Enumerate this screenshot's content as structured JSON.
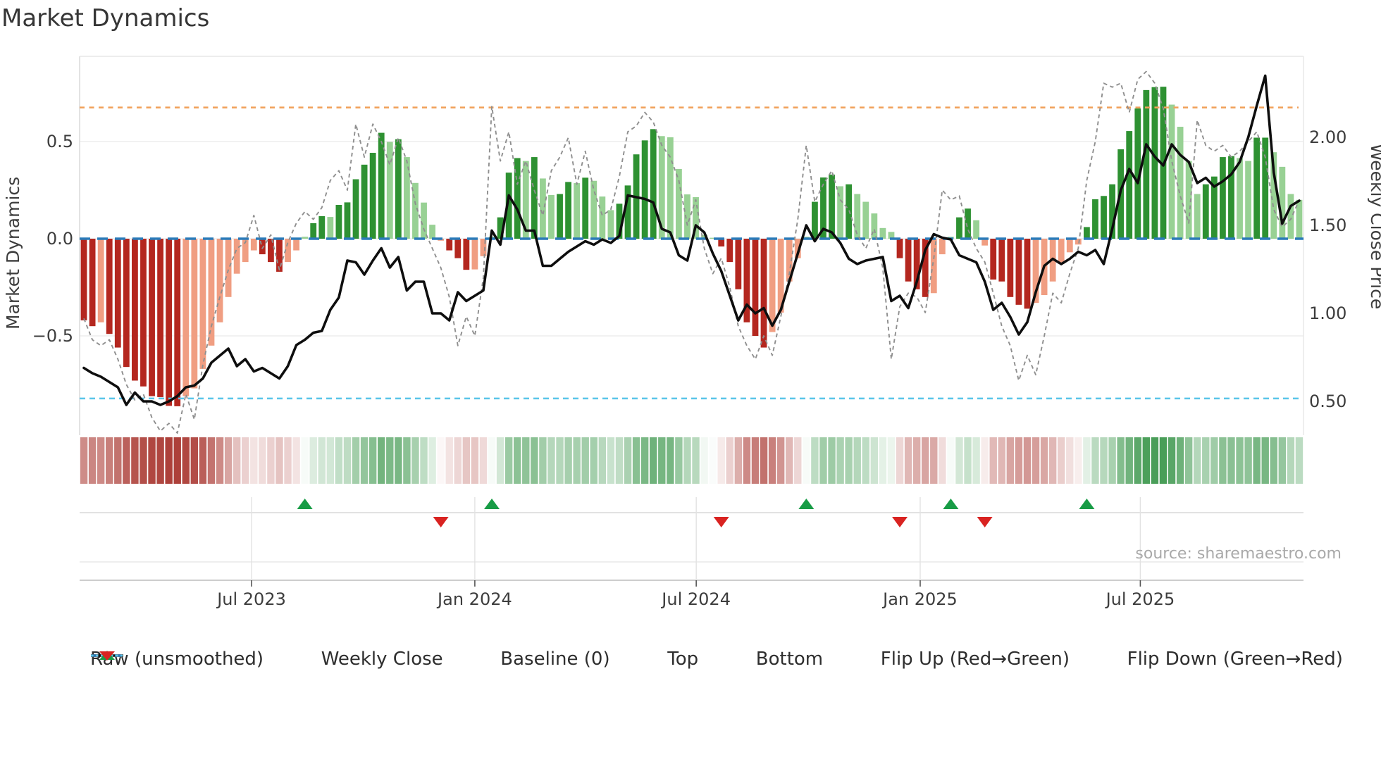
{
  "title": "Market Dynamics",
  "axes": {
    "left_title": "Market Dynamics",
    "right_title": "Weekly Close Price",
    "left_ticks": [
      {
        "value": 0.5,
        "label": "0.5"
      },
      {
        "value": 0.0,
        "label": "0.0"
      },
      {
        "value": -0.5,
        "label": "−0.5"
      }
    ],
    "right_ticks": [
      {
        "value": 2.0,
        "label": "2.00"
      },
      {
        "value": 1.5,
        "label": "1.50"
      },
      {
        "value": 1.0,
        "label": "1.00"
      },
      {
        "value": 0.5,
        "label": "0.50"
      }
    ],
    "x_ticks": [
      {
        "pos": 19.73,
        "label": "Jul 2023"
      },
      {
        "pos": 46.0,
        "label": "Jan 2024"
      },
      {
        "pos": 72.05,
        "label": "Jul 2024"
      },
      {
        "pos": 98.4,
        "label": "Jan 2025"
      },
      {
        "pos": 124.3,
        "label": "Jul 2025"
      }
    ]
  },
  "source_text": "source: sharemaestro.com",
  "legend": {
    "items": [
      {
        "label": "Raw (unsmoothed)",
        "swatch": "dash-gray"
      },
      {
        "label": "Weekly Close",
        "swatch": "solid-black"
      },
      {
        "label": "Baseline (0)",
        "swatch": "dash-blue"
      },
      {
        "label": "Top",
        "swatch": "dot-orange"
      },
      {
        "label": "Bottom",
        "swatch": "dot-cyan"
      },
      {
        "label": "Flip Up (Red→Green)",
        "swatch": "tri-up"
      },
      {
        "label": "Flip Down (Green→Red)",
        "swatch": "tri-down"
      }
    ]
  },
  "colors": {
    "bar_dark_green": "#2e9132",
    "bar_light_green": "#98d194",
    "bar_dark_red": "#b4271f",
    "bar_light_red": "#f09e82",
    "raw_line": "#8f8f8f",
    "price_line": "#0e0e0e",
    "baseline": "#2b7bb9",
    "top_line": "#f1a25c",
    "bottom_line": "#5ac5e9",
    "flip_up": "#189c46",
    "flip_down": "#d92321",
    "heat_green": "#3e984e",
    "heat_red": "#ad403a",
    "gridline": "#ededed",
    "spine": "#dcdcdc",
    "tick_text": "#3d3d3d",
    "source_text_color": "#a9a9a9"
  },
  "chart_data": {
    "type": "combo",
    "x_start_week": "2023-02-13",
    "x_freq": "weekly",
    "n_weeks": 144,
    "baseline": 0,
    "top_threshold": 0.675,
    "bottom_threshold": -0.822,
    "ylim_left": [
      -1.01,
      0.94
    ],
    "ylim_right": [
      0.31,
      2.46
    ],
    "xlabel_ticks": [
      "Jul 2023",
      "Jan 2024",
      "Jul 2024",
      "Jan 2025",
      "Jul 2025"
    ],
    "series": {
      "oscillator": [
        -0.42,
        -0.45,
        -0.43,
        -0.49,
        -0.56,
        -0.66,
        -0.73,
        -0.76,
        -0.81,
        -0.815,
        -0.86,
        -0.862,
        -0.81,
        -0.77,
        -0.67,
        -0.55,
        -0.43,
        -0.3,
        -0.18,
        -0.12,
        -0.06,
        -0.08,
        -0.12,
        -0.17,
        -0.12,
        -0.06,
        0.01,
        0.08,
        0.116,
        0.112,
        0.174,
        0.187,
        0.306,
        0.381,
        0.442,
        0.545,
        0.498,
        0.512,
        0.42,
        0.287,
        0.186,
        0.072,
        -0.01,
        -0.06,
        -0.1,
        -0.16,
        -0.158,
        -0.09,
        0.01,
        0.11,
        0.34,
        0.415,
        0.4,
        0.42,
        0.31,
        0.225,
        0.23,
        0.292,
        0.286,
        0.314,
        0.298,
        0.217,
        0.147,
        0.18,
        0.274,
        0.434,
        0.506,
        0.564,
        0.528,
        0.522,
        0.359,
        0.228,
        0.214,
        0.02,
        0.005,
        -0.04,
        -0.12,
        -0.26,
        -0.43,
        -0.5,
        -0.56,
        -0.48,
        -0.38,
        -0.22,
        -0.1,
        0.01,
        0.19,
        0.315,
        0.33,
        0.27,
        0.28,
        0.23,
        0.19,
        0.13,
        0.055,
        0.035,
        -0.1,
        -0.22,
        -0.26,
        -0.3,
        -0.28,
        -0.08,
        0.01,
        0.11,
        0.155,
        0.095,
        -0.035,
        -0.21,
        -0.22,
        -0.3,
        -0.34,
        -0.36,
        -0.33,
        -0.29,
        -0.22,
        -0.13,
        -0.07,
        -0.03,
        0.06,
        0.203,
        0.22,
        0.28,
        0.46,
        0.554,
        0.67,
        0.765,
        0.78,
        0.782,
        0.69,
        0.576,
        0.4,
        0.23,
        0.28,
        0.32,
        0.42,
        0.425,
        0.415,
        0.4,
        0.52,
        0.52,
        0.445,
        0.37,
        0.23,
        0.2
      ],
      "raw": [
        -0.41,
        -0.52,
        -0.55,
        -0.52,
        -0.62,
        -0.75,
        -0.83,
        -0.8,
        -0.92,
        -0.99,
        -0.95,
        -1.0,
        -0.8,
        -0.93,
        -0.65,
        -0.45,
        -0.3,
        -0.16,
        -0.05,
        -0.02,
        0.12,
        -0.05,
        0.02,
        -0.16,
        -0.02,
        0.08,
        0.14,
        0.1,
        0.16,
        0.3,
        0.35,
        0.25,
        0.59,
        0.42,
        0.59,
        0.5,
        0.38,
        0.52,
        0.4,
        0.18,
        0.05,
        -0.05,
        -0.15,
        -0.3,
        -0.55,
        -0.4,
        -0.5,
        -0.2,
        0.68,
        0.4,
        0.55,
        0.28,
        0.4,
        0.25,
        0.12,
        0.35,
        0.42,
        0.52,
        0.28,
        0.45,
        0.25,
        0.12,
        0.15,
        0.32,
        0.55,
        0.58,
        0.65,
        0.6,
        0.48,
        0.42,
        0.3,
        0.07,
        0.2,
        -0.05,
        -0.18,
        -0.1,
        -0.25,
        -0.45,
        -0.55,
        -0.62,
        -0.5,
        -0.6,
        -0.4,
        -0.18,
        0.1,
        0.48,
        0.19,
        0.28,
        0.35,
        0.2,
        0.15,
        0.02,
        -0.05,
        0.05,
        -0.15,
        -0.62,
        -0.35,
        -0.28,
        -0.3,
        -0.38,
        -0.1,
        0.25,
        0.2,
        0.22,
        0.05,
        -0.05,
        -0.12,
        -0.28,
        -0.45,
        -0.55,
        -0.73,
        -0.6,
        -0.7,
        -0.5,
        -0.28,
        -0.33,
        -0.18,
        -0.05,
        0.3,
        0.5,
        0.8,
        0.78,
        0.8,
        0.65,
        0.82,
        0.86,
        0.8,
        0.67,
        0.4,
        0.22,
        0.08,
        0.61,
        0.48,
        0.45,
        0.48,
        0.42,
        0.45,
        0.5,
        0.55,
        0.42,
        0.15,
        0.06,
        0.1,
        0.2
      ],
      "weekly_close": [
        0.69,
        0.66,
        0.64,
        0.61,
        0.58,
        0.48,
        0.55,
        0.5,
        0.5,
        0.48,
        0.5,
        0.53,
        0.58,
        0.59,
        0.63,
        0.72,
        0.76,
        0.8,
        0.7,
        0.74,
        0.67,
        0.69,
        0.66,
        0.63,
        0.7,
        0.82,
        0.85,
        0.89,
        0.9,
        1.02,
        1.09,
        1.3,
        1.29,
        1.22,
        1.3,
        1.37,
        1.26,
        1.32,
        1.13,
        1.18,
        1.18,
        1.0,
        1.0,
        0.96,
        1.12,
        1.07,
        1.1,
        1.13,
        1.47,
        1.39,
        1.67,
        1.59,
        1.47,
        1.47,
        1.27,
        1.27,
        1.31,
        1.35,
        1.38,
        1.41,
        1.39,
        1.42,
        1.4,
        1.44,
        1.67,
        1.66,
        1.65,
        1.63,
        1.48,
        1.46,
        1.33,
        1.3,
        1.5,
        1.46,
        1.34,
        1.24,
        1.1,
        0.96,
        1.05,
        1.0,
        1.03,
        0.93,
        1.02,
        1.18,
        1.34,
        1.5,
        1.41,
        1.48,
        1.46,
        1.4,
        1.31,
        1.28,
        1.3,
        1.31,
        1.32,
        1.07,
        1.1,
        1.03,
        1.18,
        1.36,
        1.45,
        1.43,
        1.42,
        1.33,
        1.31,
        1.29,
        1.18,
        1.02,
        1.06,
        0.98,
        0.88,
        0.95,
        1.12,
        1.27,
        1.31,
        1.28,
        1.31,
        1.35,
        1.33,
        1.36,
        1.28,
        1.48,
        1.7,
        1.82,
        1.74,
        1.96,
        1.89,
        1.84,
        1.96,
        1.9,
        1.86,
        1.74,
        1.77,
        1.72,
        1.75,
        1.79,
        1.86,
        2.0,
        2.18,
        2.35,
        1.8,
        1.51,
        1.61,
        1.64
      ]
    },
    "flip_up_weeks": [
      26,
      48,
      85,
      102,
      118
    ],
    "flip_down_weeks": [
      42,
      75,
      96,
      106
    ]
  }
}
